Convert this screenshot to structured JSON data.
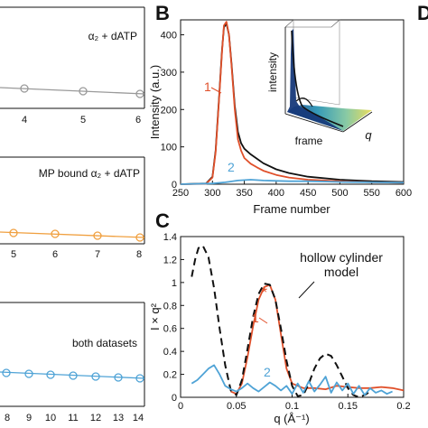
{
  "panel_labels": {
    "b": "B",
    "c": "C",
    "d": "D"
  },
  "left_panels": [
    {
      "label": "α₂ + dATP",
      "ticks": [
        "4",
        "5",
        "6"
      ],
      "color": "#9a9a9a"
    },
    {
      "label": "MP bound α₂ + dATP",
      "ticks": [
        "5",
        "6",
        "7",
        "8"
      ],
      "color": "#f0a040"
    },
    {
      "label": "both datasets",
      "ticks": [
        "8",
        "9",
        "10",
        "11",
        "12",
        "13",
        "14"
      ],
      "color": "#4fa3d6"
    }
  ],
  "colors": {
    "black": "#111111",
    "red": "#e0502a",
    "blue": "#4fa3d6",
    "orange": "#f0a040",
    "gray": "#9a9a9a"
  },
  "chart_data": [
    {
      "id": "B",
      "type": "line",
      "xlabel": "Frame number",
      "ylabel": "Intensity (a.u.)",
      "xlim": [
        250,
        600
      ],
      "ylim": [
        0,
        440
      ],
      "xticks": [
        "250",
        "300",
        "350",
        "400",
        "450",
        "500",
        "550",
        "600"
      ],
      "yticks": [
        "0",
        "100",
        "200",
        "300",
        "400"
      ],
      "annotations": [
        "1",
        "2"
      ],
      "inset": {
        "ylabel": "intensity",
        "xlabel": "frame",
        "zlabel": "q"
      },
      "series": [
        {
          "color": "black",
          "x": [
            250,
            290,
            300,
            305,
            310,
            315,
            318,
            322,
            326,
            330,
            335,
            340,
            345,
            350,
            360,
            370,
            380,
            400,
            420,
            450,
            500,
            550,
            600
          ],
          "y": [
            0,
            2,
            20,
            90,
            220,
            360,
            420,
            430,
            400,
            320,
            210,
            140,
            110,
            95,
            80,
            68,
            56,
            40,
            30,
            20,
            12,
            8,
            6
          ]
        },
        {
          "color": "red",
          "x": [
            250,
            290,
            300,
            305,
            310,
            315,
            318,
            322,
            326,
            330,
            335,
            340,
            345,
            350,
            360,
            370,
            380,
            400,
            420,
            450,
            500,
            550,
            600
          ],
          "y": [
            0,
            1,
            18,
            85,
            215,
            355,
            425,
            435,
            400,
            315,
            200,
            120,
            90,
            70,
            55,
            45,
            36,
            25,
            18,
            12,
            8,
            5,
            4
          ]
        },
        {
          "color": "blue",
          "x": [
            250,
            300,
            320,
            340,
            360,
            380,
            400,
            420,
            450,
            480,
            500,
            550,
            600
          ],
          "y": [
            0,
            2,
            5,
            10,
            12,
            10,
            9,
            8,
            8,
            7,
            6,
            5,
            4
          ]
        }
      ]
    },
    {
      "id": "C",
      "type": "line",
      "xlabel": "q (Å⁻¹)",
      "ylabel": "I × q²",
      "xlim": [
        0,
        0.2
      ],
      "ylim": [
        0,
        1.4
      ],
      "xticks": [
        "0",
        "0.05",
        "0.1",
        "0.15",
        "0.2"
      ],
      "yticks": [
        "0",
        "0.2",
        "0.4",
        "0.6",
        "0.8",
        "1",
        "1.2",
        "1.4"
      ],
      "annotations": [
        "1",
        "2",
        "*"
      ],
      "model_label": [
        "hollow cylinder",
        "model"
      ],
      "series": [
        {
          "color": "red",
          "x": [
            0.045,
            0.05,
            0.055,
            0.06,
            0.065,
            0.07,
            0.075,
            0.08,
            0.085,
            0.09,
            0.095,
            0.1,
            0.11,
            0.12,
            0.13,
            0.14,
            0.15,
            0.16,
            0.17,
            0.18,
            0.19,
            0.2
          ],
          "y": [
            0.05,
            0.03,
            0.12,
            0.35,
            0.62,
            0.85,
            0.96,
            0.98,
            0.85,
            0.55,
            0.25,
            0.12,
            0.08,
            0.08,
            0.07,
            0.1,
            0.09,
            0.08,
            0.08,
            0.09,
            0.08,
            0.06
          ]
        },
        {
          "color": "black",
          "dashed": true,
          "x": [
            0.01,
            0.013,
            0.016,
            0.02,
            0.025,
            0.03,
            0.035,
            0.04,
            0.045,
            0.05,
            0.055,
            0.06,
            0.065,
            0.07,
            0.075,
            0.08,
            0.085,
            0.09,
            0.095,
            0.1,
            0.105,
            0.11,
            0.115,
            0.12,
            0.125,
            0.13,
            0.135,
            0.14,
            0.145,
            0.15,
            0.155,
            0.16,
            0.165,
            0.17
          ],
          "y": [
            1.05,
            1.2,
            1.3,
            1.32,
            1.22,
            0.95,
            0.6,
            0.28,
            0.06,
            0.02,
            0.15,
            0.42,
            0.7,
            0.9,
            0.99,
            0.98,
            0.85,
            0.6,
            0.32,
            0.1,
            0.01,
            0.02,
            0.12,
            0.25,
            0.34,
            0.38,
            0.36,
            0.28,
            0.18,
            0.08,
            0.02,
            0.0,
            0.02,
            0.05
          ]
        },
        {
          "color": "blue",
          "x": [
            0.01,
            0.015,
            0.02,
            0.025,
            0.03,
            0.035,
            0.04,
            0.045,
            0.05,
            0.055,
            0.06,
            0.065,
            0.07,
            0.075,
            0.08,
            0.085,
            0.09,
            0.095,
            0.1,
            0.105,
            0.11,
            0.115,
            0.12,
            0.125,
            0.13,
            0.135,
            0.14,
            0.145,
            0.15,
            0.155,
            0.16,
            0.165,
            0.17,
            0.175,
            0.18,
            0.185,
            0.19
          ],
          "y": [
            0.12,
            0.15,
            0.2,
            0.25,
            0.28,
            0.2,
            0.1,
            0.07,
            0.05,
            0.08,
            0.12,
            0.08,
            0.05,
            0.09,
            0.13,
            0.1,
            0.06,
            0.1,
            0.03,
            0.12,
            0.04,
            0.14,
            0.05,
            0.11,
            0.18,
            0.04,
            0.13,
            0.06,
            0.12,
            0.03,
            0.1,
            0.02,
            0.08,
            0.04,
            0.06,
            0.03,
            0.05
          ]
        }
      ]
    }
  ]
}
